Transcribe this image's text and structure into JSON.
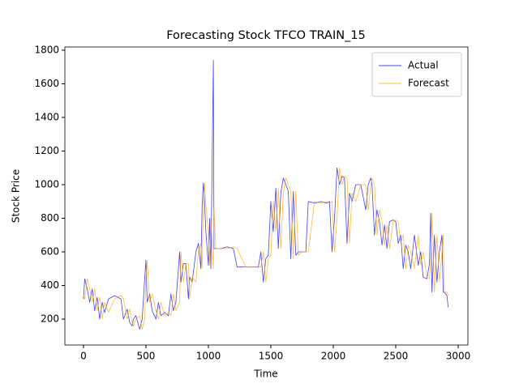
{
  "chart_data": {
    "type": "line",
    "title": "Forecasting Stock TFCO TRAIN_15",
    "x_label": "Time",
    "y_label": "Stock Price",
    "x": [
      0,
      10,
      30,
      50,
      70,
      90,
      110,
      130,
      150,
      170,
      200,
      250,
      300,
      320,
      350,
      370,
      390,
      400,
      420,
      450,
      470,
      490,
      500,
      510,
      530,
      550,
      580,
      600,
      620,
      650,
      680,
      700,
      720,
      740,
      770,
      780,
      800,
      820,
      840,
      850,
      870,
      900,
      920,
      940,
      950,
      960,
      970,
      980,
      1000,
      1010,
      1020,
      1040,
      1045,
      1060,
      1100,
      1150,
      1200,
      1230,
      1300,
      1400,
      1420,
      1440,
      1460,
      1480,
      1500,
      1520,
      1540,
      1560,
      1580,
      1600,
      1620,
      1640,
      1660,
      1680,
      1700,
      1720,
      1750,
      1780,
      1800,
      1850,
      1900,
      1950,
      1970,
      1990,
      2010,
      2030,
      2050,
      2070,
      2090,
      2110,
      2130,
      2150,
      2180,
      2220,
      2260,
      2280,
      2300,
      2310,
      2330,
      2350,
      2370,
      2390,
      2410,
      2430,
      2450,
      2480,
      2500,
      2520,
      2540,
      2560,
      2580,
      2600,
      2620,
      2650,
      2680,
      2700,
      2720,
      2750,
      2770,
      2780,
      2790,
      2810,
      2830,
      2850,
      2870,
      2880,
      2890,
      2910,
      2920
    ],
    "series": [
      {
        "name": "Actual",
        "color": "#0000ff",
        "values": [
          320,
          440,
          380,
          300,
          380,
          250,
          330,
          200,
          300,
          240,
          320,
          340,
          320,
          200,
          260,
          180,
          160,
          200,
          220,
          140,
          200,
          440,
          550,
          300,
          350,
          250,
          200,
          300,
          220,
          240,
          220,
          350,
          250,
          300,
          600,
          420,
          530,
          530,
          320,
          450,
          420,
          600,
          650,
          500,
          880,
          1010,
          880,
          720,
          520,
          800,
          500,
          1740,
          620,
          620,
          620,
          630,
          620,
          510,
          510,
          510,
          600,
          420,
          560,
          580,
          900,
          720,
          980,
          620,
          950,
          1040,
          1000,
          960,
          560,
          960,
          580,
          600,
          600,
          600,
          900,
          890,
          900,
          890,
          900,
          600,
          800,
          1100,
          1000,
          1050,
          1040,
          650,
          950,
          900,
          1000,
          1000,
          850,
          1000,
          1040,
          1000,
          700,
          850,
          780,
          640,
          760,
          620,
          780,
          790,
          780,
          650,
          700,
          500,
          640,
          600,
          500,
          700,
          520,
          600,
          450,
          440,
          530,
          830,
          360,
          700,
          420,
          600,
          700,
          360,
          360,
          340,
          270
        ]
      },
      {
        "name": "Forecast",
        "color": "#ffa500",
        "values": [
          340,
          320,
          440,
          380,
          300,
          380,
          250,
          330,
          200,
          300,
          240,
          320,
          340,
          320,
          200,
          260,
          180,
          160,
          200,
          220,
          140,
          200,
          440,
          550,
          300,
          350,
          250,
          200,
          300,
          220,
          240,
          220,
          350,
          250,
          300,
          600,
          420,
          530,
          530,
          320,
          450,
          420,
          600,
          650,
          500,
          880,
          1010,
          880,
          720,
          520,
          800,
          500,
          860,
          620,
          620,
          620,
          630,
          620,
          510,
          510,
          510,
          600,
          420,
          560,
          580,
          900,
          720,
          980,
          620,
          950,
          1040,
          1000,
          960,
          560,
          960,
          580,
          600,
          600,
          600,
          900,
          890,
          900,
          890,
          900,
          600,
          800,
          1100,
          1000,
          1050,
          1040,
          650,
          950,
          900,
          1000,
          1000,
          850,
          1000,
          1040,
          1000,
          700,
          850,
          780,
          640,
          760,
          620,
          780,
          790,
          780,
          650,
          700,
          500,
          640,
          600,
          500,
          700,
          520,
          600,
          450,
          440,
          530,
          830,
          360,
          700,
          420,
          600,
          700,
          360,
          360,
          340
        ]
      }
    ],
    "xlim": [
      -149,
      3078
    ],
    "ylim": [
      46,
      1819
    ],
    "xticks": [
      0,
      500,
      1000,
      1500,
      2000,
      2500,
      3000
    ],
    "yticks": [
      200,
      400,
      600,
      800,
      1000,
      1200,
      1400,
      1600,
      1800
    ],
    "legend": "upper right"
  }
}
